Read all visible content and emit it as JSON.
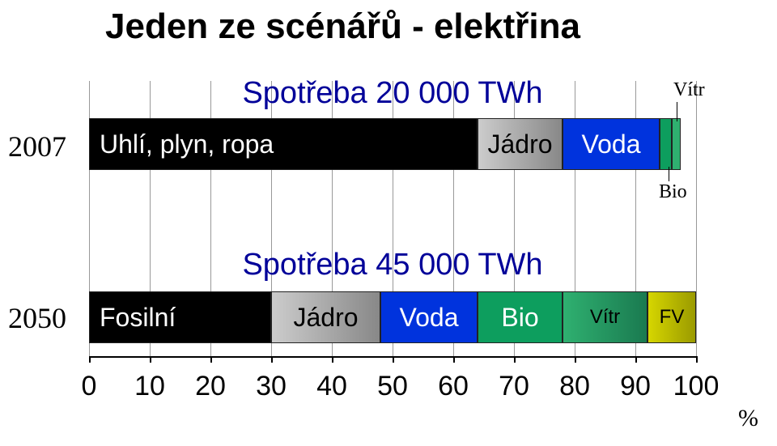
{
  "title": "Jeden ze scénářů - elektřina",
  "subtitle_2007": "Spotřeba 20 000 TWh",
  "subtitle_2050": "Spotřeba 45 000 TWh",
  "axis": {
    "min": 0,
    "max": 100,
    "step": 10,
    "unit": "%"
  },
  "bars": {
    "row2007": {
      "year": "2007",
      "segments": [
        {
          "label": "Uhlí, plyn, ropa",
          "from": 0,
          "to": 64,
          "bg": "#000000",
          "fg": "#ffffff",
          "align": "left"
        },
        {
          "label": "Jádro",
          "from": 64,
          "to": 78,
          "bg_from": "#cccccc",
          "bg_to": "#888888",
          "fg": "#000000"
        },
        {
          "label": "Voda",
          "from": 78,
          "to": 94,
          "bg": "#0033dd",
          "fg": "#ffffff"
        },
        {
          "label": "",
          "from": 94,
          "to": 96,
          "bg": "#0d9e5e",
          "fg": "#000000",
          "is_bio": true
        },
        {
          "label": "",
          "from": 96,
          "to": 97.5,
          "bg": "#2fb070",
          "fg": "#000000",
          "is_wind": true
        }
      ]
    },
    "row2050": {
      "year": "2050",
      "segments": [
        {
          "label": "Fosilní",
          "from": 0,
          "to": 30,
          "bg": "#000000",
          "fg": "#ffffff",
          "align": "left"
        },
        {
          "label": "Jádro",
          "from": 30,
          "to": 48,
          "bg_from": "#cccccc",
          "bg_to": "#888888",
          "fg": "#000000"
        },
        {
          "label": "Voda",
          "from": 48,
          "to": 64,
          "bg": "#0033dd",
          "fg": "#ffffff"
        },
        {
          "label": "Bio",
          "from": 64,
          "to": 78,
          "bg": "#0d9e5e",
          "fg": "#ffffff"
        },
        {
          "label": "Vítr",
          "from": 78,
          "to": 92,
          "bg_from": "#2fb070",
          "bg_to": "#1a7a50",
          "fg": "#000000",
          "small": true
        },
        {
          "label": "FV",
          "from": 92,
          "to": 100,
          "bg_from": "#d6d600",
          "bg_to": "#9a9a00",
          "fg": "#000000",
          "small": true
        }
      ]
    }
  },
  "callout_wind": "Vítr",
  "callout_bio": "Bio",
  "accent_blue": "#000099"
}
